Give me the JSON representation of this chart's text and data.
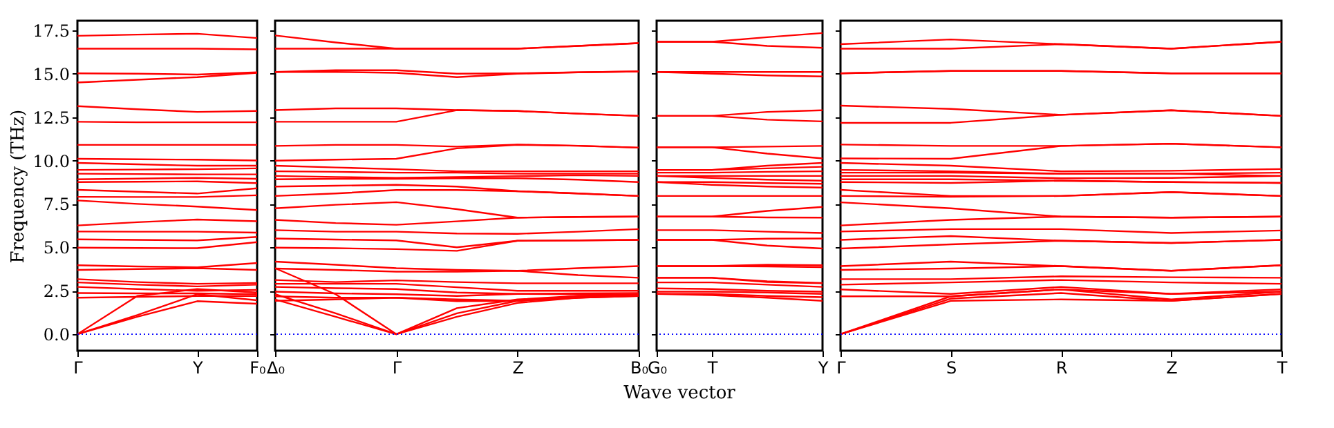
{
  "chart_data": [
    {
      "type": "line",
      "ylabel": "Frequency (THz)",
      "categories": [
        "Γ",
        null,
        "Y",
        "F₀"
      ],
      "ylim": [
        -0.95,
        18.05
      ],
      "yticks": [
        {
          "value": 0,
          "label": "0.0"
        },
        2.5,
        {
          "value": 5,
          "label": "5.0"
        },
        7.5,
        {
          "value": 10,
          "label": "10.0"
        },
        12.5,
        {
          "value": 15,
          "label": "15.0"
        },
        17.5
      ],
      "ref_lines": [
        {
          "axis": "y",
          "value": 0,
          "color": "#0000ff",
          "line_style": "dotted"
        }
      ],
      "series": [
        {
          "color": "#ff0000",
          "values": [
            17.18,
            17.25,
            17.3,
            17.05
          ]
        },
        {
          "color": "#ff0000",
          "values": [
            16.44,
            16.44,
            16.44,
            16.4
          ]
        },
        {
          "color": "#ff0000",
          "values": [
            15.02,
            15.0,
            14.95,
            15.08
          ]
        },
        {
          "color": "#ff0000",
          "values": [
            14.49,
            14.65,
            14.8,
            15.05
          ]
        },
        {
          "color": "#ff0000",
          "values": [
            13.13,
            12.95,
            12.8,
            12.85
          ]
        },
        {
          "color": "#ff0000",
          "values": [
            12.23,
            12.2,
            12.2,
            12.2
          ]
        },
        {
          "color": "#ff0000",
          "values": [
            10.9,
            10.9,
            10.9,
            10.9
          ]
        },
        {
          "color": "#ff0000",
          "values": [
            10.1,
            10.07,
            10.05,
            10.0
          ]
        },
        {
          "color": "#ff0000",
          "values": [
            9.86,
            9.78,
            9.7,
            9.7
          ]
        },
        {
          "color": "#ff0000",
          "values": [
            9.46,
            9.48,
            9.5,
            9.55
          ]
        },
        {
          "color": "#ff0000",
          "values": [
            9.24,
            9.22,
            9.2,
            9.2
          ]
        },
        {
          "color": "#ff0000",
          "values": [
            8.92,
            8.96,
            9.0,
            8.95
          ]
        },
        {
          "color": "#ff0000",
          "values": [
            8.76,
            8.78,
            8.8,
            8.7
          ]
        },
        {
          "color": "#ff0000",
          "values": [
            8.31,
            8.2,
            8.1,
            8.4
          ]
        },
        {
          "color": "#ff0000",
          "values": [
            7.91,
            7.9,
            7.9,
            8.0
          ]
        },
        {
          "color": "#ff0000",
          "values": [
            7.7,
            7.5,
            7.35,
            7.15
          ]
        },
        {
          "color": "#ff0000",
          "values": [
            6.26,
            6.45,
            6.6,
            6.5
          ]
        },
        {
          "color": "#ff0000",
          "values": [
            5.91,
            5.9,
            5.9,
            5.85
          ]
        },
        {
          "color": "#ff0000",
          "values": [
            5.46,
            5.43,
            5.4,
            5.6
          ]
        },
        {
          "color": "#ff0000",
          "values": [
            4.98,
            4.96,
            4.95,
            5.3
          ]
        },
        {
          "color": "#ff0000",
          "values": [
            3.97,
            3.9,
            3.85,
            4.1
          ]
        },
        {
          "color": "#ff0000",
          "values": [
            3.7,
            3.75,
            3.8,
            3.7
          ]
        },
        {
          "color": "#ff0000",
          "values": [
            3.17,
            3.0,
            2.9,
            2.95
          ]
        },
        {
          "color": "#ff0000",
          "values": [
            2.98,
            2.85,
            2.75,
            2.85
          ]
        },
        {
          "color": "#ff0000",
          "values": [
            2.72,
            2.6,
            2.5,
            2.55
          ]
        },
        {
          "color": "#ff0000",
          "values": [
            2.37,
            2.35,
            2.35,
            2.3
          ]
        },
        {
          "color": "#ff0000",
          "values": [
            2.1,
            2.15,
            2.2,
            2.2
          ]
        },
        {
          "color": "#ff0000",
          "values": [
            0,
            2.2,
            2.6,
            2.4
          ]
        },
        {
          "color": "#ff0000",
          "values": [
            0,
            1.1,
            2.3,
            1.95
          ]
        },
        {
          "color": "#ff0000",
          "values": [
            0,
            1.0,
            1.9,
            1.75
          ]
        }
      ]
    },
    {
      "type": "line",
      "tick_labels": "x",
      "categories": [
        "Δ₀",
        null,
        "Γ",
        null,
        "Z",
        null,
        "B₀"
      ],
      "ylim": [
        -0.95,
        18.05
      ],
      "yticks": [
        0,
        2.5,
        5,
        7.5,
        10,
        12.5,
        15,
        17.5
      ],
      "ref_lines": [
        {
          "axis": "y",
          "value": 0,
          "color": "#0000ff",
          "line_style": "dotted"
        }
      ],
      "series": [
        {
          "color": "#ff0000",
          "values": [
            17.2,
            16.8,
            16.44,
            16.44,
            16.44,
            16.6,
            16.76
          ]
        },
        {
          "color": "#ff0000",
          "values": [
            16.44,
            16.44,
            16.44,
            16.44,
            16.44,
            16.6,
            16.76
          ]
        },
        {
          "color": "#ff0000",
          "values": [
            15.1,
            15.2,
            15.2,
            15.0,
            15.02,
            15.08,
            15.13
          ]
        },
        {
          "color": "#ff0000",
          "values": [
            15.1,
            15.1,
            15.05,
            14.8,
            15.0,
            15.08,
            15.13
          ]
        },
        {
          "color": "#ff0000",
          "values": [
            12.9,
            13.0,
            13.0,
            12.9,
            12.85,
            12.7,
            12.57
          ]
        },
        {
          "color": "#ff0000",
          "values": [
            12.23,
            12.23,
            12.23,
            12.9,
            12.85,
            12.7,
            12.57
          ]
        },
        {
          "color": "#ff0000",
          "values": [
            10.84,
            10.9,
            10.9,
            10.8,
            10.92,
            10.85,
            10.74
          ]
        },
        {
          "color": "#ff0000",
          "values": [
            9.99,
            10.05,
            10.1,
            10.7,
            10.9,
            10.85,
            10.74
          ]
        },
        {
          "color": "#ff0000",
          "values": [
            9.7,
            9.6,
            9.5,
            9.38,
            9.38,
            9.38,
            9.38
          ]
        },
        {
          "color": "#ff0000",
          "values": [
            9.38,
            9.35,
            9.3,
            9.3,
            9.24,
            9.24,
            9.24
          ]
        },
        {
          "color": "#ff0000",
          "values": [
            9.11,
            9.05,
            9.0,
            9.05,
            9.1,
            9.15,
            9.11
          ]
        },
        {
          "color": "#ff0000",
          "values": [
            8.92,
            8.95,
            8.95,
            8.98,
            8.98,
            8.9,
            8.76
          ]
        },
        {
          "color": "#ff0000",
          "values": [
            8.5,
            8.55,
            8.6,
            8.5,
            8.23,
            8.1,
            7.96
          ]
        },
        {
          "color": "#ff0000",
          "values": [
            7.96,
            8.1,
            8.3,
            8.3,
            8.23,
            8.1,
            7.96
          ]
        },
        {
          "color": "#ff0000",
          "values": [
            7.25,
            7.45,
            7.6,
            7.2,
            6.71,
            6.75,
            6.77
          ]
        },
        {
          "color": "#ff0000",
          "values": [
            6.58,
            6.4,
            6.3,
            6.5,
            6.71,
            6.75,
            6.77
          ]
        },
        {
          "color": "#ff0000",
          "values": [
            5.99,
            5.9,
            5.9,
            5.8,
            5.78,
            5.9,
            6.05
          ]
        },
        {
          "color": "#ff0000",
          "values": [
            5.51,
            5.45,
            5.4,
            5.0,
            5.38,
            5.4,
            5.43
          ]
        },
        {
          "color": "#ff0000",
          "values": [
            4.98,
            4.95,
            4.9,
            4.8,
            5.38,
            5.4,
            5.43
          ]
        },
        {
          "color": "#ff0000",
          "values": [
            4.18,
            4.0,
            3.8,
            3.7,
            3.65,
            3.8,
            3.92
          ]
        },
        {
          "color": "#ff0000",
          "values": [
            3.78,
            3.7,
            3.6,
            3.6,
            3.65,
            3.4,
            3.25
          ]
        },
        {
          "color": "#ff0000",
          "values": [
            3.12,
            3.0,
            3.1,
            3.0,
            2.93,
            2.93,
            2.93
          ]
        },
        {
          "color": "#ff0000",
          "values": [
            2.9,
            2.9,
            2.9,
            2.7,
            2.5,
            2.5,
            2.5
          ]
        },
        {
          "color": "#ff0000",
          "values": [
            2.72,
            2.65,
            2.6,
            2.4,
            2.32,
            2.35,
            2.37
          ]
        },
        {
          "color": "#ff0000",
          "values": [
            2.45,
            2.35,
            2.3,
            2.2,
            2.32,
            2.3,
            2.26
          ]
        },
        {
          "color": "#ff0000",
          "values": [
            2.18,
            2.1,
            2.1,
            2.0,
            1.92,
            2.1,
            2.2
          ]
        },
        {
          "color": "#ff0000",
          "values": [
            1.92,
            2.0,
            2.1,
            1.9,
            1.92,
            2.1,
            2.2
          ]
        },
        {
          "color": "#ff0000",
          "values": [
            2.3,
            1.2,
            0,
            1.2,
            1.92,
            2.2,
            2.3
          ]
        },
        {
          "color": "#ff0000",
          "values": [
            2.0,
            1.0,
            0,
            1.0,
            1.8,
            2.1,
            2.26
          ]
        },
        {
          "color": "#ff0000",
          "values": [
            3.8,
            2.3,
            0,
            1.5,
            2.0,
            2.2,
            2.2
          ]
        }
      ]
    },
    {
      "type": "line",
      "tick_labels": "x",
      "xlabel": "Wave vector",
      "categories": [
        "G₀",
        "T",
        null,
        "Y"
      ],
      "ylim": [
        -0.95,
        18.05
      ],
      "yticks": [
        0,
        2.5,
        5,
        7.5,
        10,
        12.5,
        15,
        17.5
      ],
      "ref_lines": [
        {
          "axis": "y",
          "value": 0,
          "color": "#0000ff",
          "line_style": "dotted"
        }
      ],
      "series": [
        {
          "color": "#ff0000",
          "values": [
            16.84,
            16.84,
            17.1,
            17.34
          ]
        },
        {
          "color": "#ff0000",
          "values": [
            16.84,
            16.84,
            16.6,
            16.49
          ]
        },
        {
          "color": "#ff0000",
          "values": [
            15.1,
            15.1,
            15.1,
            15.1
          ]
        },
        {
          "color": "#ff0000",
          "values": [
            15.1,
            15.0,
            14.9,
            14.84
          ]
        },
        {
          "color": "#ff0000",
          "values": [
            12.57,
            12.57,
            12.8,
            12.89
          ]
        },
        {
          "color": "#ff0000",
          "values": [
            12.57,
            12.57,
            12.35,
            12.25
          ]
        },
        {
          "color": "#ff0000",
          "values": [
            10.76,
            10.76,
            10.8,
            10.84
          ]
        },
        {
          "color": "#ff0000",
          "values": [
            10.76,
            10.76,
            10.4,
            10.12
          ]
        },
        {
          "color": "#ff0000",
          "values": [
            9.46,
            9.46,
            9.7,
            9.86
          ]
        },
        {
          "color": "#ff0000",
          "values": [
            9.46,
            9.46,
            9.55,
            9.64
          ]
        },
        {
          "color": "#ff0000",
          "values": [
            9.3,
            9.3,
            9.35,
            9.38
          ]
        },
        {
          "color": "#ff0000",
          "values": [
            9.11,
            9.11,
            9.11,
            9.11
          ]
        },
        {
          "color": "#ff0000",
          "values": [
            9.11,
            9.0,
            8.9,
            8.84
          ]
        },
        {
          "color": "#ff0000",
          "values": [
            8.76,
            8.76,
            8.7,
            8.66
          ]
        },
        {
          "color": "#ff0000",
          "values": [
            8.76,
            8.6,
            8.5,
            8.44
          ]
        },
        {
          "color": "#ff0000",
          "values": [
            7.96,
            7.96,
            7.96,
            7.96
          ]
        },
        {
          "color": "#ff0000",
          "values": [
            6.77,
            6.77,
            7.1,
            7.33
          ]
        },
        {
          "color": "#ff0000",
          "values": [
            6.77,
            6.77,
            6.72,
            6.71
          ]
        },
        {
          "color": "#ff0000",
          "values": [
            5.99,
            5.99,
            5.9,
            5.83
          ]
        },
        {
          "color": "#ff0000",
          "values": [
            5.43,
            5.43,
            5.5,
            5.51
          ]
        },
        {
          "color": "#ff0000",
          "values": [
            5.43,
            5.43,
            5.1,
            4.93
          ]
        },
        {
          "color": "#ff0000",
          "values": [
            3.92,
            3.92,
            4.0,
            3.97
          ]
        },
        {
          "color": "#ff0000",
          "values": [
            3.92,
            3.92,
            3.9,
            3.86
          ]
        },
        {
          "color": "#ff0000",
          "values": [
            3.25,
            3.25,
            3.0,
            2.93
          ]
        },
        {
          "color": "#ff0000",
          "values": [
            3.25,
            3.25,
            3.05,
            2.95
          ]
        },
        {
          "color": "#ff0000",
          "values": [
            2.98,
            2.98,
            2.85,
            2.72
          ]
        },
        {
          "color": "#ff0000",
          "values": [
            2.64,
            2.6,
            2.5,
            2.45
          ]
        },
        {
          "color": "#ff0000",
          "values": [
            2.45,
            2.45,
            2.4,
            2.32
          ]
        },
        {
          "color": "#ff0000",
          "values": [
            2.32,
            2.32,
            2.2,
            2.13
          ]
        },
        {
          "color": "#ff0000",
          "values": [
            2.32,
            2.25,
            2.1,
            1.92
          ]
        }
      ]
    },
    {
      "type": "line",
      "tick_labels": "x",
      "categories": [
        "Γ",
        "S",
        "R",
        "Z",
        "T"
      ],
      "ylim": [
        -0.95,
        18.05
      ],
      "yticks": [
        0,
        2.5,
        5,
        7.5,
        10,
        12.5,
        15,
        17.5
      ],
      "ref_lines": [
        {
          "axis": "y",
          "value": 0,
          "color": "#0000ff",
          "line_style": "dotted"
        }
      ],
      "series": [
        {
          "color": "#ff0000",
          "values": [
            16.7,
            16.97,
            16.7,
            16.44,
            16.84
          ]
        },
        {
          "color": "#ff0000",
          "values": [
            16.44,
            16.44,
            16.7,
            16.44,
            16.84
          ]
        },
        {
          "color": "#ff0000",
          "values": [
            15.02,
            15.16,
            15.16,
            15.02,
            15.02
          ]
        },
        {
          "color": "#ff0000",
          "values": [
            15.02,
            15.16,
            15.16,
            15.02,
            15.02
          ]
        },
        {
          "color": "#ff0000",
          "values": [
            13.16,
            12.97,
            12.63,
            12.89,
            12.57
          ]
        },
        {
          "color": "#ff0000",
          "values": [
            12.17,
            12.17,
            12.63,
            12.89,
            12.57
          ]
        },
        {
          "color": "#ff0000",
          "values": [
            10.92,
            10.84,
            10.84,
            10.97,
            10.76
          ]
        },
        {
          "color": "#ff0000",
          "values": [
            10.12,
            10.1,
            10.84,
            10.97,
            10.76
          ]
        },
        {
          "color": "#ff0000",
          "values": [
            9.86,
            9.7,
            9.38,
            9.41,
            9.51
          ]
        },
        {
          "color": "#ff0000",
          "values": [
            9.46,
            9.38,
            9.24,
            9.24,
            9.3
          ]
        },
        {
          "color": "#ff0000",
          "values": [
            9.3,
            9.3,
            9.24,
            9.24,
            9.11
          ]
        },
        {
          "color": "#ff0000",
          "values": [
            9.11,
            9.11,
            8.98,
            9.0,
            9.11
          ]
        },
        {
          "color": "#ff0000",
          "values": [
            8.92,
            8.92,
            8.84,
            8.76,
            8.71
          ]
        },
        {
          "color": "#ff0000",
          "values": [
            8.76,
            8.71,
            8.84,
            8.76,
            8.71
          ]
        },
        {
          "color": "#ff0000",
          "values": [
            8.31,
            7.96,
            7.96,
            8.18,
            7.96
          ]
        },
        {
          "color": "#ff0000",
          "values": [
            7.96,
            7.91,
            7.96,
            8.18,
            7.96
          ]
        },
        {
          "color": "#ff0000",
          "values": [
            7.59,
            7.25,
            6.77,
            6.71,
            6.77
          ]
        },
        {
          "color": "#ff0000",
          "values": [
            6.26,
            6.58,
            6.77,
            6.71,
            6.77
          ]
        },
        {
          "color": "#ff0000",
          "values": [
            5.91,
            6.05,
            6.05,
            5.83,
            5.97
          ]
        },
        {
          "color": "#ff0000",
          "values": [
            5.43,
            5.65,
            5.38,
            5.25,
            5.43
          ]
        },
        {
          "color": "#ff0000",
          "values": [
            4.93,
            5.17,
            5.38,
            5.25,
            5.43
          ]
        },
        {
          "color": "#ff0000",
          "values": [
            3.92,
            4.18,
            3.92,
            3.65,
            3.97
          ]
        },
        {
          "color": "#ff0000",
          "values": [
            3.7,
            3.78,
            3.92,
            3.65,
            3.97
          ]
        },
        {
          "color": "#ff0000",
          "values": [
            3.17,
            3.17,
            3.33,
            3.28,
            3.25
          ]
        },
        {
          "color": "#ff0000",
          "values": [
            2.85,
            2.98,
            3.12,
            2.98,
            2.9
          ]
        },
        {
          "color": "#ff0000",
          "values": [
            2.58,
            2.32,
            2.72,
            2.32,
            2.58
          ]
        },
        {
          "color": "#ff0000",
          "values": [
            2.18,
            2.18,
            2.58,
            2.32,
            2.45
          ]
        },
        {
          "color": "#ff0000",
          "values": [
            0,
            2.05,
            2.37,
            1.92,
            2.32
          ]
        },
        {
          "color": "#ff0000",
          "values": [
            0,
            1.92,
            2.0,
            1.92,
            2.32
          ]
        },
        {
          "color": "#ff0000",
          "values": [
            0,
            2.18,
            2.58,
            2.0,
            2.45
          ]
        }
      ]
    }
  ]
}
